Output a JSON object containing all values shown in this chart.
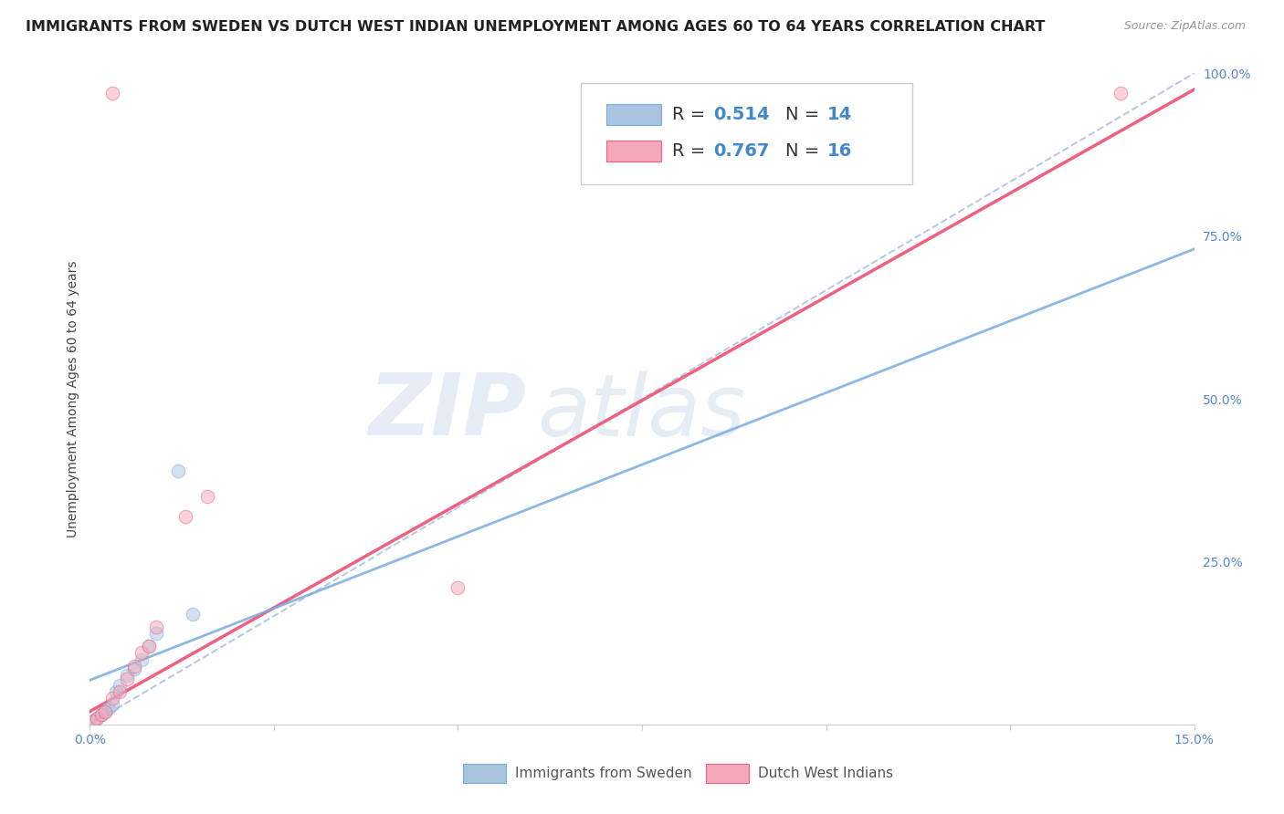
{
  "title": "IMMIGRANTS FROM SWEDEN VS DUTCH WEST INDIAN UNEMPLOYMENT AMONG AGES 60 TO 64 YEARS CORRELATION CHART",
  "source": "Source: ZipAtlas.com",
  "ylabel": "Unemployment Among Ages 60 to 64 years",
  "xlim": [
    0.0,
    0.15
  ],
  "ylim": [
    0.0,
    1.0
  ],
  "x_ticks": [
    0.0,
    0.025,
    0.05,
    0.075,
    0.1,
    0.125,
    0.15
  ],
  "y_ticks_right": [
    0.0,
    0.25,
    0.5,
    0.75,
    1.0
  ],
  "y_tick_labels_right": [
    "",
    "25.0%",
    "50.0%",
    "75.0%",
    "100.0%"
  ],
  "sweden_color": "#a8c4e0",
  "dwi_color": "#f4a8b8",
  "sweden_line_color": "#7aabdf",
  "dwi_line_color": "#f06080",
  "ref_line_color": "#aabbdd",
  "sweden_x": [
    0.0005,
    0.001,
    0.0015,
    0.002,
    0.0025,
    0.003,
    0.0035,
    0.004,
    0.005,
    0.006,
    0.007,
    0.008,
    0.009,
    0.012,
    0.014
  ],
  "sweden_y": [
    0.005,
    0.01,
    0.015,
    0.02,
    0.025,
    0.03,
    0.05,
    0.06,
    0.075,
    0.085,
    0.1,
    0.12,
    0.14,
    0.39,
    0.17
  ],
  "dwi_x": [
    0.0005,
    0.001,
    0.0015,
    0.002,
    0.003,
    0.004,
    0.005,
    0.006,
    0.007,
    0.008,
    0.009,
    0.013,
    0.016,
    0.05,
    0.14,
    0.003
  ],
  "dwi_y": [
    0.005,
    0.01,
    0.015,
    0.02,
    0.04,
    0.05,
    0.07,
    0.09,
    0.11,
    0.12,
    0.15,
    0.32,
    0.35,
    0.21,
    0.97,
    0.97
  ],
  "sweden_line": [
    0.0,
    0.068,
    0.15,
    0.73
  ],
  "dwi_line": [
    0.0,
    0.02,
    0.15,
    0.975
  ],
  "ref_line": [
    0.0,
    0.0,
    0.15,
    1.0
  ],
  "watermark_zip": "ZIP",
  "watermark_atlas": "atlas",
  "background_color": "#ffffff",
  "grid_color": "#dddddd",
  "title_fontsize": 11.5,
  "axis_label_fontsize": 10,
  "tick_fontsize": 10,
  "marker_size": 110,
  "marker_alpha": 0.5
}
